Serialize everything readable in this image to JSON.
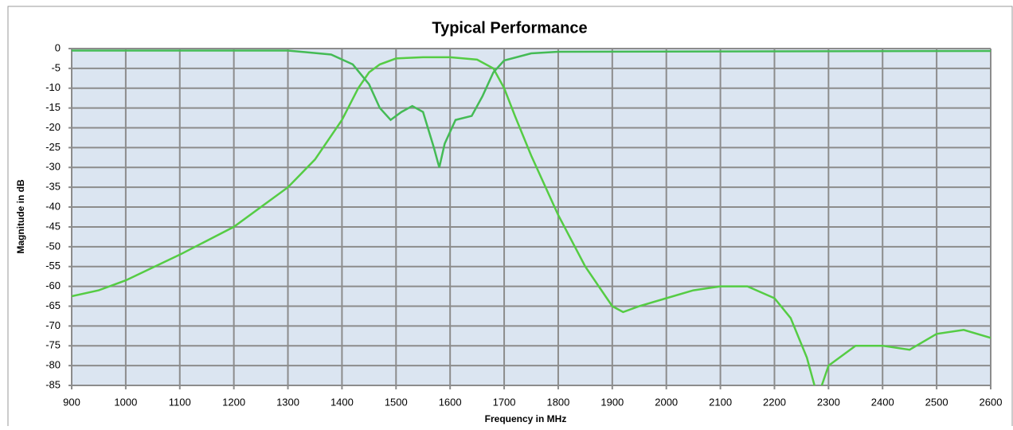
{
  "chart_data": {
    "type": "line",
    "title": "Typical Performance",
    "xlabel": "Frequency in MHz",
    "ylabel": "Magnitude in dB",
    "series": [
      {
        "color": "#55cc44",
        "x": [
          900,
          950,
          1000,
          1100,
          1200,
          1300,
          1350,
          1400,
          1430,
          1450,
          1470,
          1500,
          1550,
          1600,
          1650,
          1680,
          1700,
          1720,
          1750,
          1800,
          1850,
          1900,
          1920,
          1950,
          2000,
          2050,
          2100,
          2150,
          2200,
          2230,
          2260,
          2280,
          2300,
          2350,
          2400,
          2450,
          2500,
          2550,
          2600
        ],
        "values": [
          -62.5,
          -61,
          -58.5,
          -52,
          -45,
          -35,
          -28,
          -18,
          -10,
          -6,
          -4,
          -2.5,
          -2.2,
          -2.2,
          -2.8,
          -5,
          -10,
          -17,
          -27,
          -42,
          -55,
          -65,
          -66.5,
          -65,
          -63,
          -61,
          -60,
          -60,
          -63,
          -68,
          -78,
          -88,
          -80,
          -75,
          -75,
          -76,
          -72,
          -71,
          -73
        ]
      },
      {
        "color": "#44bb55",
        "x": [
          900,
          1300,
          1380,
          1420,
          1450,
          1470,
          1490,
          1510,
          1530,
          1550,
          1570,
          1580,
          1590,
          1610,
          1640,
          1660,
          1680,
          1700,
          1750,
          1800,
          2600
        ],
        "values": [
          -0.5,
          -0.5,
          -1.5,
          -4,
          -9,
          -15,
          -18,
          -16,
          -14.5,
          -16,
          -25,
          -30,
          -24,
          -18,
          -17,
          -12,
          -6,
          -3,
          -1.2,
          -0.8,
          -0.6
        ]
      }
    ],
    "xlim": [
      900,
      2600
    ],
    "xticks": [
      900,
      1000,
      1100,
      1200,
      1300,
      1400,
      1500,
      1600,
      1700,
      1800,
      1900,
      2000,
      2100,
      2200,
      2300,
      2400,
      2500,
      2600
    ],
    "ylim": [
      -85,
      0
    ],
    "yticks": [
      0,
      -5,
      -10,
      -15,
      -20,
      -25,
      -30,
      -35,
      -40,
      -45,
      -50,
      -55,
      -60,
      -65,
      -70,
      -75,
      -80,
      -85
    ],
    "grid": true
  }
}
